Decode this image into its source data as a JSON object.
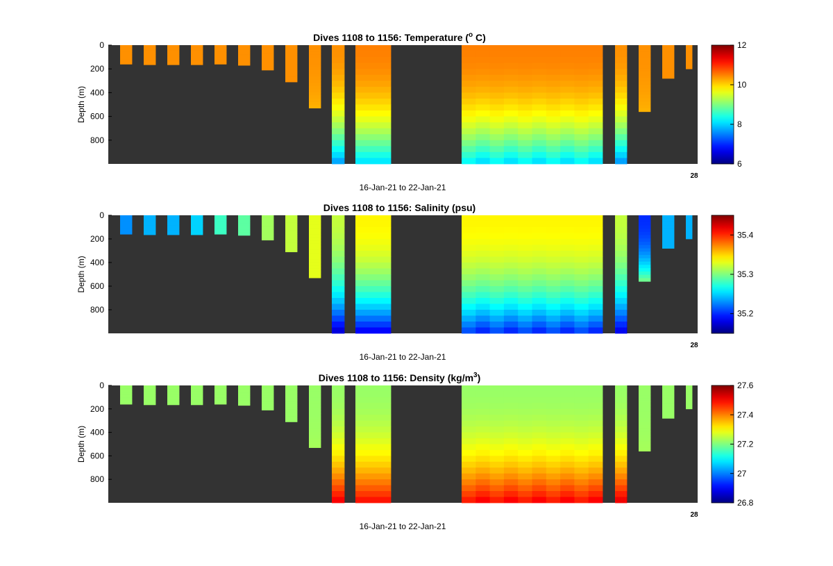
{
  "chart_data": [
    {
      "type": "heatmap",
      "title": "Dives 1108 to 1156: Temperature (",
      "title_super": "o",
      "title_suffix": " C)",
      "ylabel": "Depth (m)",
      "xlabel": "16-Jan-21 to 22-Jan-21",
      "corner_label": "28",
      "yticks": [
        "0",
        "200",
        "400",
        "600",
        "800"
      ],
      "ylim": [
        0,
        1000
      ],
      "yreversed": true,
      "colorbar": {
        "min": 6,
        "max": 12,
        "ticks": [
          "6",
          "8",
          "10",
          "12"
        ],
        "colormap": "jet"
      },
      "profiles": [
        {
          "dive": 1,
          "max_depth": 160,
          "surface": 10.4,
          "deep": 10.4
        },
        {
          "dive": 2,
          "max_depth": 165,
          "surface": 10.4,
          "deep": 10.4
        },
        {
          "dive": 3,
          "max_depth": 165,
          "surface": 10.4,
          "deep": 10.4
        },
        {
          "dive": 4,
          "max_depth": 165,
          "surface": 10.4,
          "deep": 10.4
        },
        {
          "dive": 5,
          "max_depth": 160,
          "surface": 10.4,
          "deep": 10.4
        },
        {
          "dive": 6,
          "max_depth": 170,
          "surface": 10.4,
          "deep": 10.4
        },
        {
          "dive": 7,
          "max_depth": 210,
          "surface": 10.4,
          "deep": 10.4
        },
        {
          "dive": 8,
          "max_depth": 310,
          "surface": 10.4,
          "deep": 10.4
        },
        {
          "dive": 9,
          "max_depth": 530,
          "surface": 10.4,
          "deep": 10.2
        },
        {
          "dive": 10,
          "max_depth": 1000,
          "surface": 10.4,
          "deep": 7.6
        },
        {
          "dive": 11,
          "max_depth": 1000,
          "surface": 10.5,
          "deep": 8.0
        },
        {
          "dive": 12,
          "max_depth": 1000,
          "surface": 10.5,
          "deep": 8.1
        },
        {
          "dive": 13,
          "max_depth": 1000,
          "surface": 10.4,
          "deep": 7.6
        },
        {
          "dive": 14,
          "max_depth": 560,
          "surface": 10.4,
          "deep": 10.2
        },
        {
          "dive": 15,
          "max_depth": 280,
          "surface": 10.4,
          "deep": 10.4
        },
        {
          "dive": 16,
          "max_depth": 200,
          "surface": 10.4,
          "deep": 10.4
        }
      ]
    },
    {
      "type": "heatmap",
      "title": "Dives 1108 to 1156: Salinity (psu)",
      "title_super": "",
      "title_suffix": "",
      "ylabel": "Depth (m)",
      "xlabel": "16-Jan-21 to 22-Jan-21",
      "corner_label": "28",
      "yticks": [
        "0",
        "200",
        "400",
        "600",
        "800"
      ],
      "ylim": [
        0,
        1000
      ],
      "yreversed": true,
      "colorbar": {
        "min": 35.15,
        "max": 35.45,
        "ticks": [
          "35.2",
          "35.3",
          "35.4"
        ],
        "colormap": "jet"
      },
      "profiles": [
        {
          "dive": 1,
          "max_depth": 160,
          "surface": 35.23,
          "deep": 35.23
        },
        {
          "dive": 2,
          "max_depth": 165,
          "surface": 35.24,
          "deep": 35.24
        },
        {
          "dive": 3,
          "max_depth": 165,
          "surface": 35.24,
          "deep": 35.24
        },
        {
          "dive": 4,
          "max_depth": 165,
          "surface": 35.25,
          "deep": 35.25
        },
        {
          "dive": 5,
          "max_depth": 160,
          "surface": 35.28,
          "deep": 35.28
        },
        {
          "dive": 6,
          "max_depth": 170,
          "surface": 35.29,
          "deep": 35.29
        },
        {
          "dive": 7,
          "max_depth": 210,
          "surface": 35.31,
          "deep": 35.31
        },
        {
          "dive": 8,
          "max_depth": 310,
          "surface": 35.32,
          "deep": 35.32
        },
        {
          "dive": 9,
          "max_depth": 530,
          "surface": 35.33,
          "deep": 35.33
        },
        {
          "dive": 10,
          "max_depth": 1000,
          "surface": 35.32,
          "deep": 35.17
        },
        {
          "dive": 11,
          "max_depth": 1000,
          "surface": 35.34,
          "deep": 35.18
        },
        {
          "dive": 12,
          "max_depth": 1000,
          "surface": 35.34,
          "deep": 35.2
        },
        {
          "dive": 13,
          "max_depth": 1000,
          "surface": 35.32,
          "deep": 35.18
        },
        {
          "dive": 14,
          "max_depth": 560,
          "surface": 35.2,
          "deep": 35.3
        },
        {
          "dive": 15,
          "max_depth": 280,
          "surface": 35.24,
          "deep": 35.24
        },
        {
          "dive": 16,
          "max_depth": 200,
          "surface": 35.24,
          "deep": 35.24
        }
      ]
    },
    {
      "type": "heatmap",
      "title": "Dives 1108 to 1156: Density (kg/m",
      "title_super": "3",
      "title_suffix": ")",
      "ylabel": "Depth (m)",
      "xlabel": "16-Jan-21 to 22-Jan-21",
      "corner_label": "28",
      "yticks": [
        "0",
        "200",
        "400",
        "600",
        "800"
      ],
      "ylim": [
        0,
        1000
      ],
      "yreversed": true,
      "colorbar": {
        "min": 26.8,
        "max": 27.6,
        "ticks": [
          "26.8",
          "27",
          "27.2",
          "27.4",
          "27.6"
        ],
        "colormap": "jet"
      },
      "profiles": [
        {
          "dive": 1,
          "max_depth": 160,
          "surface": 27.22,
          "deep": 27.22
        },
        {
          "dive": 2,
          "max_depth": 165,
          "surface": 27.22,
          "deep": 27.22
        },
        {
          "dive": 3,
          "max_depth": 165,
          "surface": 27.22,
          "deep": 27.22
        },
        {
          "dive": 4,
          "max_depth": 165,
          "surface": 27.22,
          "deep": 27.22
        },
        {
          "dive": 5,
          "max_depth": 160,
          "surface": 27.22,
          "deep": 27.22
        },
        {
          "dive": 6,
          "max_depth": 170,
          "surface": 27.22,
          "deep": 27.22
        },
        {
          "dive": 7,
          "max_depth": 210,
          "surface": 27.22,
          "deep": 27.22
        },
        {
          "dive": 8,
          "max_depth": 310,
          "surface": 27.22,
          "deep": 27.22
        },
        {
          "dive": 9,
          "max_depth": 530,
          "surface": 27.22,
          "deep": 27.23
        },
        {
          "dive": 10,
          "max_depth": 1000,
          "surface": 27.22,
          "deep": 27.52
        },
        {
          "dive": 11,
          "max_depth": 1000,
          "surface": 27.22,
          "deep": 27.5
        },
        {
          "dive": 12,
          "max_depth": 1000,
          "surface": 27.22,
          "deep": 27.5
        },
        {
          "dive": 13,
          "max_depth": 1000,
          "surface": 27.22,
          "deep": 27.52
        },
        {
          "dive": 14,
          "max_depth": 560,
          "surface": 27.22,
          "deep": 27.23
        },
        {
          "dive": 15,
          "max_depth": 280,
          "surface": 27.22,
          "deep": 27.22
        },
        {
          "dive": 16,
          "max_depth": 200,
          "surface": 27.22,
          "deep": 27.22
        }
      ]
    }
  ],
  "colors": {
    "background": "#333333"
  }
}
